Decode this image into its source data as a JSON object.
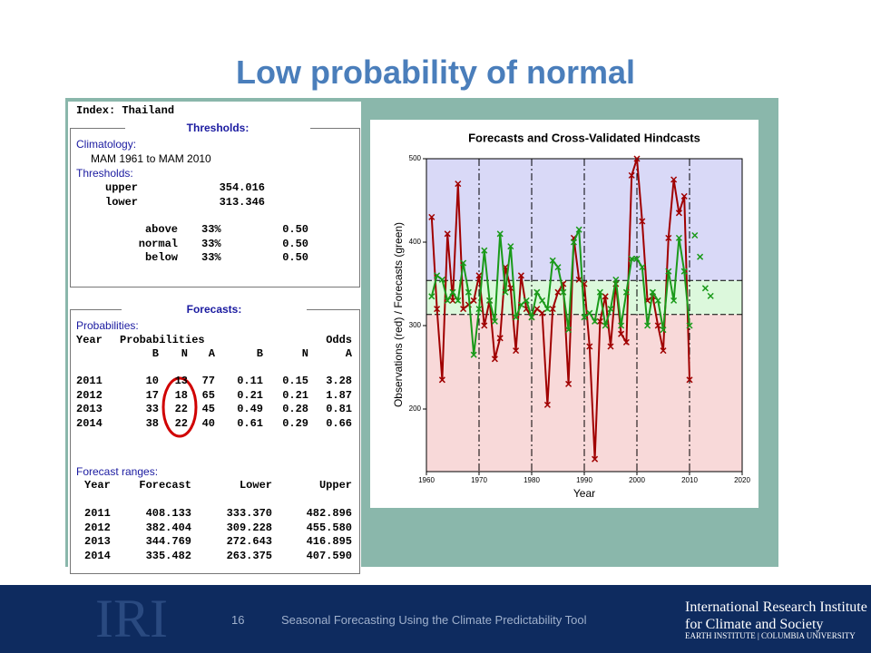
{
  "slide": {
    "title": "Low probability of normal",
    "page_number": "16",
    "footer": "Seasonal Forecasting Using the Climate Predictability Tool",
    "logo": {
      "mark": "IRI",
      "line1": "International Research Institute",
      "line2": "for Climate and Society",
      "line3": "Earth Institute | Columbia University"
    }
  },
  "index_line": "Index: Thailand",
  "thresholds_panel": {
    "legend": "Thresholds:",
    "climatology_label": "Climatology:",
    "climatology": "MAM 1961 to MAM 2010",
    "thresholds_label": "Thresholds:",
    "rows": [
      [
        "upper",
        "354.016"
      ],
      [
        "lower",
        "313.346"
      ]
    ],
    "categories": [
      [
        "above",
        "33%",
        "0.50"
      ],
      [
        "normal",
        "33%",
        "0.50"
      ],
      [
        "below",
        "33%",
        "0.50"
      ]
    ]
  },
  "forecasts_panel": {
    "legend": "Forecasts:",
    "probabilities_label": "Probabilities:",
    "header1": [
      "Year",
      "Probabilities",
      "Odds"
    ],
    "header2": [
      "B",
      "N",
      "A",
      "B",
      "N",
      "A"
    ],
    "rows": [
      [
        "2011",
        "10",
        "13",
        "77",
        "0.11",
        "0.15",
        "3.28"
      ],
      [
        "2012",
        "17",
        "18",
        "65",
        "0.21",
        "0.21",
        "1.87"
      ],
      [
        "2013",
        "33",
        "22",
        "45",
        "0.49",
        "0.28",
        "0.81"
      ],
      [
        "2014",
        "38",
        "22",
        "40",
        "0.61",
        "0.29",
        "0.66"
      ]
    ],
    "ranges_label": "Forecast ranges:",
    "ranges_header": [
      "Year",
      "Forecast",
      "Lower",
      "Upper"
    ],
    "ranges_rows": [
      [
        "2011",
        "408.133",
        "333.370",
        "482.896"
      ],
      [
        "2012",
        "382.404",
        "309.228",
        "455.580"
      ],
      [
        "2013",
        "344.769",
        "272.643",
        "416.895"
      ],
      [
        "2014",
        "335.482",
        "263.375",
        "407.590"
      ]
    ]
  },
  "chart_data": {
    "type": "line",
    "title": "Forecasts and Cross-Validated Hindcasts",
    "xlabel": "Year",
    "ylabel": "Observations (red) / Forecasts (green)",
    "x": [
      1961,
      1962,
      1963,
      1964,
      1965,
      1966,
      1967,
      1968,
      1969,
      1970,
      1971,
      1972,
      1973,
      1974,
      1975,
      1976,
      1977,
      1978,
      1979,
      1980,
      1981,
      1982,
      1983,
      1984,
      1985,
      1986,
      1987,
      1988,
      1989,
      1990,
      1991,
      1992,
      1993,
      1994,
      1995,
      1996,
      1997,
      1998,
      1999,
      2000,
      2001,
      2002,
      2003,
      2004,
      2005,
      2006,
      2007,
      2008,
      2009,
      2010
    ],
    "series": [
      {
        "color": "#a00000",
        "values": [
          430,
          320,
          235,
          410,
          330,
          470,
          320,
          325,
          330,
          360,
          300,
          330,
          260,
          285,
          370,
          345,
          270,
          360,
          320,
          310,
          320,
          315,
          205,
          320,
          340,
          350,
          230,
          405,
          355,
          350,
          275,
          140,
          305,
          335,
          275,
          350,
          290,
          280,
          480,
          500,
          425,
          330,
          335,
          300,
          270,
          405,
          475,
          435,
          455,
          235
        ]
      },
      {
        "color": "#1a9a1a",
        "values": [
          335,
          360,
          355,
          330,
          340,
          330,
          375,
          340,
          265,
          320,
          390,
          330,
          305,
          410,
          340,
          395,
          310,
          325,
          330,
          310,
          340,
          330,
          320,
          378,
          370,
          340,
          295,
          400,
          415,
          310,
          315,
          305,
          340,
          300,
          320,
          355,
          300,
          340,
          380,
          380,
          370,
          300,
          340,
          330,
          295,
          365,
          330,
          405,
          365,
          300
        ]
      }
    ],
    "forecast_points": {
      "color": "#1a9a1a",
      "x": [
        2011,
        2012,
        2013,
        2014
      ],
      "values": [
        408.133,
        382.404,
        344.769,
        335.482
      ]
    },
    "upper_threshold": 354.016,
    "lower_threshold": 313.346,
    "band_colors": [
      "#d9d9f7",
      "#dcf8dc",
      "#f8d9d9"
    ],
    "xlim": [
      1960,
      2020
    ],
    "ylim": [
      125,
      500
    ],
    "xticks": [
      1960,
      1970,
      1980,
      1990,
      2000,
      2010,
      2020
    ],
    "yticks": [
      200,
      300,
      400,
      500
    ],
    "grid": true
  }
}
